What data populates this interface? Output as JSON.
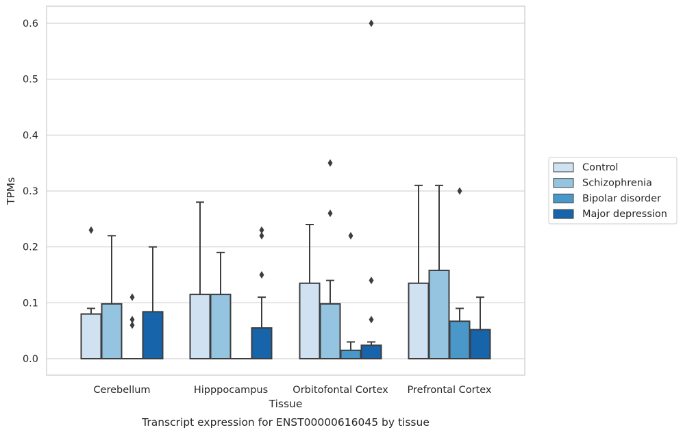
{
  "chart_data": {
    "type": "box",
    "title": "",
    "caption": "Transcript expression for ENST00000616045 by tissue",
    "xlabel": "Tissue",
    "ylabel": "TPMs",
    "ylim": [
      -0.03,
      0.63
    ],
    "yticks": [
      0.0,
      0.1,
      0.2,
      0.3,
      0.4,
      0.5,
      0.6
    ],
    "ytick_labels": [
      "0.0",
      "0.1",
      "0.2",
      "0.3",
      "0.4",
      "0.5",
      "0.6"
    ],
    "grid": "horizontal",
    "legend_position": "right",
    "categories": [
      "Cerebellum",
      "Hipppocampus",
      "Orbitofontal Cortex",
      "Prefrontal Cortex"
    ],
    "series": [
      {
        "name": "Control",
        "color": "#d0e1f2",
        "boxes": [
          {
            "whislo": 0.0,
            "q1": 0.0,
            "med": 0.0,
            "q3": 0.08,
            "whishi": 0.09,
            "fliers": [
              0.23
            ]
          },
          {
            "whislo": 0.0,
            "q1": 0.0,
            "med": 0.0,
            "q3": 0.115,
            "whishi": 0.28,
            "fliers": []
          },
          {
            "whislo": 0.0,
            "q1": 0.0,
            "med": 0.0,
            "q3": 0.135,
            "whishi": 0.24,
            "fliers": []
          },
          {
            "whislo": 0.0,
            "q1": 0.0,
            "med": 0.0,
            "q3": 0.135,
            "whishi": 0.31,
            "fliers": []
          }
        ]
      },
      {
        "name": "Schizophrenia",
        "color": "#94c4df",
        "boxes": [
          {
            "whislo": 0.0,
            "q1": 0.0,
            "med": 0.0,
            "q3": 0.098,
            "whishi": 0.22,
            "fliers": []
          },
          {
            "whislo": 0.0,
            "q1": 0.0,
            "med": 0.0,
            "q3": 0.115,
            "whishi": 0.19,
            "fliers": []
          },
          {
            "whislo": 0.0,
            "q1": 0.0,
            "med": 0.0,
            "q3": 0.098,
            "whishi": 0.14,
            "fliers": [
              0.35,
              0.26
            ]
          },
          {
            "whislo": 0.0,
            "q1": 0.0,
            "med": 0.0,
            "q3": 0.158,
            "whishi": 0.31,
            "fliers": []
          }
        ]
      },
      {
        "name": "Bipolar disorder",
        "color": "#4a98c9",
        "boxes": [
          {
            "whislo": 0.0,
            "q1": 0.0,
            "med": 0.0,
            "q3": 0.0,
            "whishi": 0.0,
            "fliers": [
              0.11,
              0.07,
              0.06
            ]
          },
          {
            "whislo": 0.0,
            "q1": 0.0,
            "med": 0.0,
            "q3": 0.0,
            "whishi": 0.0,
            "fliers": []
          },
          {
            "whislo": 0.0,
            "q1": 0.0,
            "med": 0.0,
            "q3": 0.015,
            "whishi": 0.03,
            "fliers": [
              0.22
            ]
          },
          {
            "whislo": 0.0,
            "q1": 0.0,
            "med": 0.0,
            "q3": 0.067,
            "whishi": 0.09,
            "fliers": [
              0.3
            ]
          }
        ]
      },
      {
        "name": "Major depression",
        "color": "#1764ab",
        "boxes": [
          {
            "whislo": 0.0,
            "q1": 0.0,
            "med": 0.0,
            "q3": 0.084,
            "whishi": 0.2,
            "fliers": []
          },
          {
            "whislo": 0.0,
            "q1": 0.0,
            "med": 0.0,
            "q3": 0.055,
            "whishi": 0.11,
            "fliers": [
              0.23,
              0.22,
              0.15
            ]
          },
          {
            "whislo": 0.0,
            "q1": 0.0,
            "med": 0.0,
            "q3": 0.024,
            "whishi": 0.03,
            "fliers": [
              0.6,
              0.14,
              0.07
            ]
          },
          {
            "whislo": 0.0,
            "q1": 0.0,
            "med": 0.0,
            "q3": 0.052,
            "whishi": 0.11,
            "fliers": []
          }
        ]
      }
    ]
  }
}
